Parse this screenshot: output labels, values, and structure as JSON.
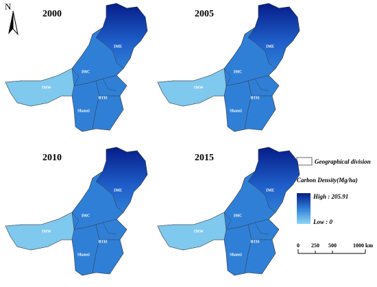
{
  "panels": [
    {
      "year": "2000"
    },
    {
      "year": "2005"
    },
    {
      "year": "2010"
    },
    {
      "year": "2015"
    }
  ],
  "regions": [
    "IME",
    "IMC",
    "IMW",
    "BTH",
    "Shanxi"
  ],
  "north": "N",
  "legend": {
    "division": "Geographical division",
    "density_title": "Carbon Density(Mg/ha)",
    "high": "High : 205.91",
    "low": "Low : 0"
  },
  "scale": {
    "labels": [
      "0",
      "250",
      "500",
      "1000 km"
    ]
  }
}
